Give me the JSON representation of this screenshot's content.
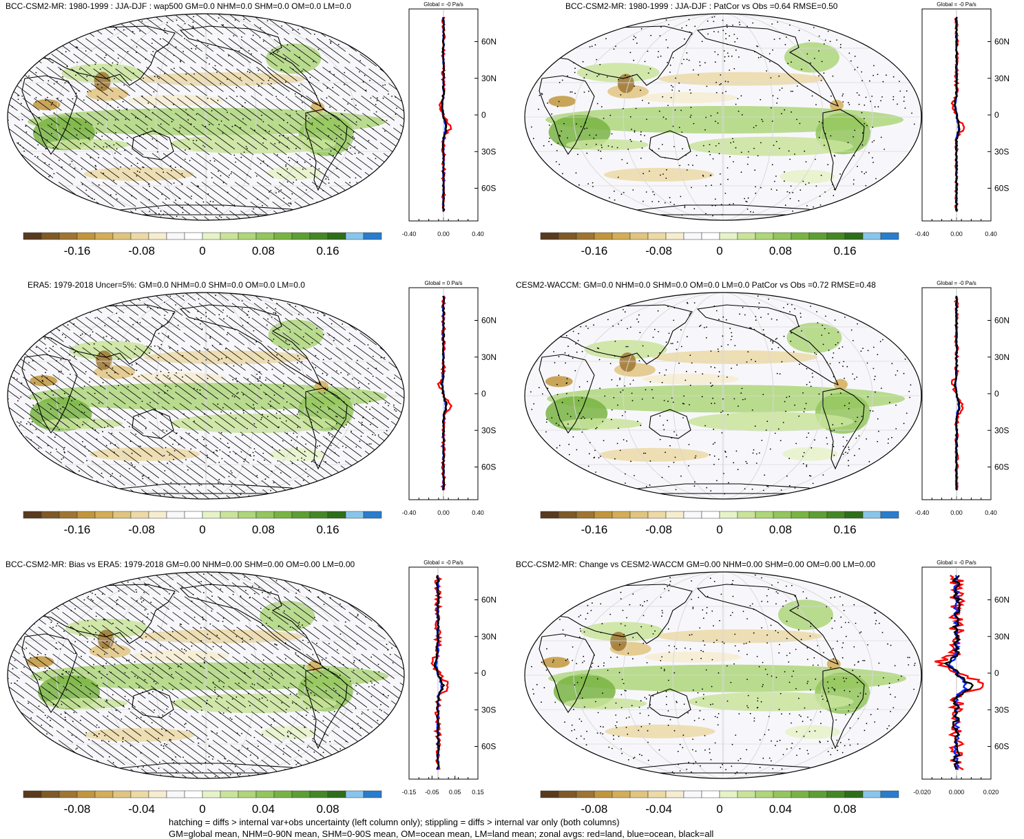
{
  "palette": [
    "#5a3a1e",
    "#7d5a28",
    "#9e7532",
    "#c1963c",
    "#d3ad58",
    "#e0c47f",
    "#ecd9a6",
    "#f6ecd0",
    "#f8f8fa",
    "#ffffff",
    "#e6f2c8",
    "#c9e49a",
    "#aed67a",
    "#93c65c",
    "#79b443",
    "#5e9f34",
    "#458727",
    "#2e6e1b",
    "#89c5eb",
    "#2a7ccc"
  ],
  "line_colors": {
    "land": "#ff0000",
    "ocean": "#0022ff",
    "all": "#000000"
  },
  "panels": [
    {
      "title": "BCC-CSM2-MR: 1980-1999 : JJA-DJF : wap500 GM=0.0 NHM=0.0 SHM=0.0 OM=0.0 LM=0.0",
      "hatching": true,
      "zonal_header": "Global = -0 Pa/s",
      "colorbar_ticks": [
        "-0.16",
        "-0.08",
        "0",
        "0.08",
        "0.16"
      ],
      "zonal_ticks": [
        "-0.40",
        "0.00",
        "0.40"
      ],
      "lat_labels": [
        "60N",
        "30N",
        "0",
        "30S",
        "60S"
      ]
    },
    {
      "title": "BCC-CSM2-MR: 1980-1999 : JJA-DJF : PatCor vs Obs =0.64 RMSE=0.50",
      "hatching": false,
      "zonal_header": "Global = -0 Pa/s",
      "colorbar_ticks": [
        "-0.16",
        "-0.08",
        "0",
        "0.08",
        "0.16"
      ],
      "zonal_ticks": [
        "-0.40",
        "0.00",
        "0.40"
      ],
      "lat_labels": [
        "60N",
        "30N",
        "0",
        "30S",
        "60S"
      ]
    },
    {
      "title": "ERA5: 1979-2018 Uncer=5%: GM=0.0 NHM=0.0 SHM=0.0 OM=0.0 LM=0.0",
      "hatching": true,
      "zonal_header": "Global = 0 Pa/s",
      "colorbar_ticks": [
        "-0.16",
        "-0.08",
        "0",
        "0.08",
        "0.16"
      ],
      "zonal_ticks": [
        "-0.40",
        "0.00",
        "0.40"
      ],
      "lat_labels": [
        "60N",
        "30N",
        "0",
        "30S",
        "60S"
      ]
    },
    {
      "title": "CESM2-WACCM: GM=0.0 NHM=0.0 SHM=0.0 OM=0.0 LM=0.0 PatCor vs Obs =0.72 RMSE=0.48",
      "hatching": false,
      "zonal_header": "Global = -0 Pa/s",
      "colorbar_ticks": [
        "-0.16",
        "-0.08",
        "0",
        "0.08",
        "0.16"
      ],
      "zonal_ticks": [
        "-0.40",
        "0.00",
        "0.40"
      ],
      "lat_labels": [
        "60N",
        "30N",
        "0",
        "30S",
        "60S"
      ]
    },
    {
      "title": "BCC-CSM2-MR: Bias vs ERA5: 1979-2018 GM=0.00 NHM=0.00 SHM=0.00 OM=0.00 LM=0.00",
      "hatching": true,
      "zonal_header": "Global = -0 Pa/s",
      "colorbar_ticks": [
        "-0.08",
        "-0.04",
        "0",
        "0.04",
        "0.08"
      ],
      "zonal_ticks": [
        "-0.15",
        "-0.05",
        "0.05",
        "0.15"
      ],
      "lat_labels": [
        "60N",
        "30N",
        "0",
        "30S",
        "60S"
      ]
    },
    {
      "title": "BCC-CSM2-MR: Change vs CESM2-WACCM GM=0.00 NHM=0.00 SHM=0.00 OM=0.00 LM=0.00",
      "hatching": false,
      "zonal_header": "Global = -0 Pa/s",
      "colorbar_ticks": [
        "-0.08",
        "-0.04",
        "0",
        "0.04",
        "0.08"
      ],
      "zonal_ticks": [
        "-0.020",
        "0.000",
        "0.020"
      ],
      "lat_labels": [
        "60N",
        "30N",
        "0",
        "30S",
        "60S"
      ]
    }
  ],
  "footer": {
    "line1": "hatching = diffs > internal var+obs uncertainty (left column only); stippling = diffs > internal var only (both columns)",
    "line2": "GM=global mean, NHM=0-90N mean, SHM=0-90S mean, OM=ocean mean, LM=land mean; zonal avgs: red=land, blue=ocean, black=all"
  }
}
